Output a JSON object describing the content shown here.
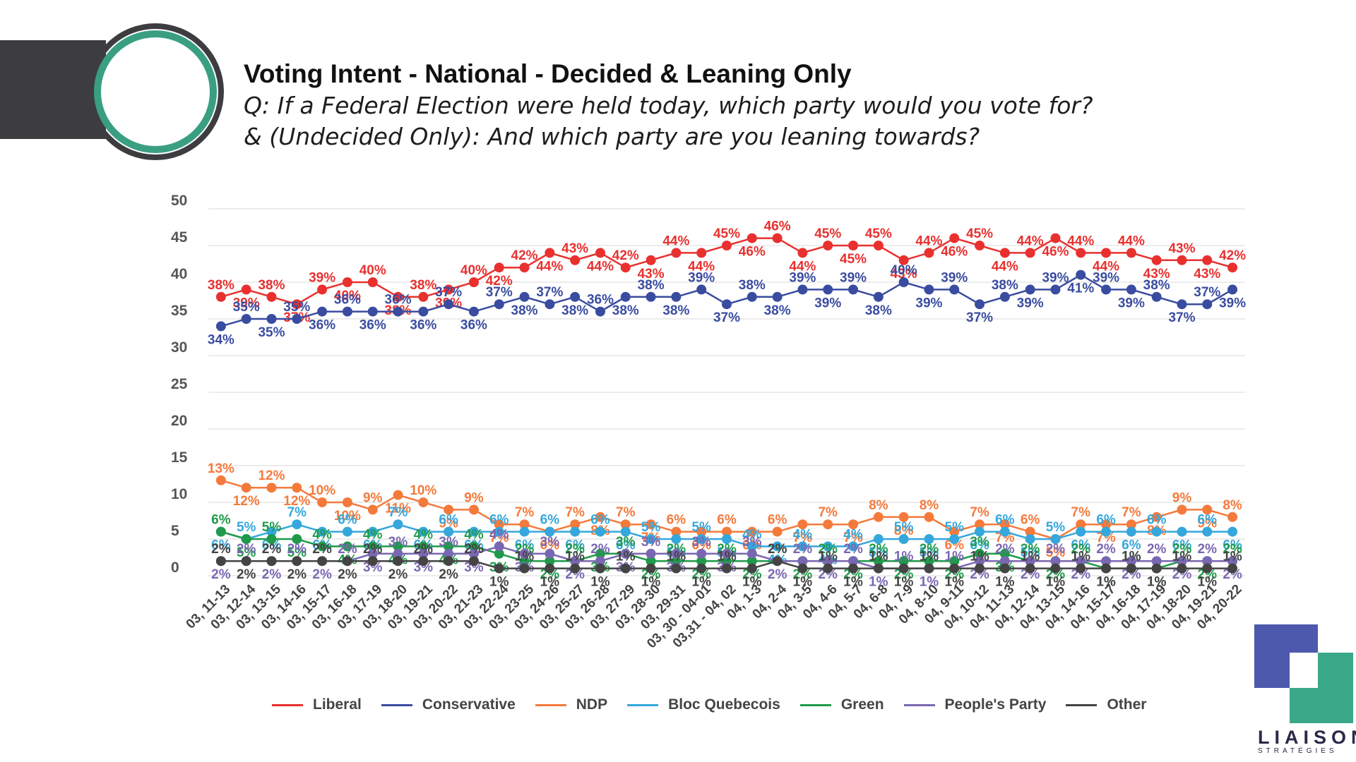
{
  "header": {
    "title": "Voting Intent - National - Decided & Leaning Only",
    "subtitle_line1": "Q: If a Federal Election were held today, which party would you vote for?",
    "subtitle_line2": "& (Undecided Only): And which party are you leaning towards?"
  },
  "logo": {
    "name": "LIAISON",
    "tagline": "STRATÉGIES"
  },
  "chart_data": {
    "type": "line",
    "title": "",
    "xlabel": "",
    "ylabel": "",
    "ylim": [
      0,
      50
    ],
    "yticks": [
      "0",
      "5",
      "10",
      "15",
      "20",
      "25",
      "30",
      "35",
      "40",
      "45",
      "50"
    ],
    "grid": true,
    "legend_position": "bottom",
    "categories": [
      "03, 11-13",
      "03, 12-14",
      "03, 13-15",
      "03, 14-16",
      "03, 15-17",
      "03, 16-18",
      "03, 17-19",
      "03, 18-20",
      "03, 19-21",
      "03, 20-22",
      "03, 21-23",
      "03, 22-24",
      "03, 23-25",
      "03, 24-26",
      "03, 25-27",
      "03, 26-28",
      "03, 27-29",
      "03, 28-30",
      "03, 29-31",
      "03, 30 - 04-01",
      "03,31 - 04, 02",
      "04, 1-3",
      "04, 2-4",
      "04, 3-5",
      "04, 4-6",
      "04, 5-7",
      "04, 6-8",
      "04, 7-9",
      "04, 8-10",
      "04, 9-11",
      "04, 10-12",
      "04, 11-13",
      "04, 12-14",
      "04, 13-15",
      "04, 14-16",
      "04, 15-17",
      "04, 16-18",
      "04, 17-19",
      "04, 18-20",
      "04, 19-21",
      "04, 20-22"
    ],
    "series": [
      {
        "name": "Liberal",
        "color": "#e8312f",
        "values": [
          38,
          39,
          38,
          37,
          39,
          40,
          40,
          38,
          38,
          39,
          40,
          42,
          42,
          44,
          43,
          44,
          42,
          43,
          44,
          44,
          45,
          46,
          46,
          44,
          45,
          45,
          45,
          43,
          44,
          46,
          45,
          44,
          44,
          46,
          44,
          44,
          44,
          43,
          43,
          43,
          42
        ]
      },
      {
        "name": "Conservative",
        "color": "#3a4ca0",
        "values": [
          34,
          35,
          35,
          35,
          36,
          36,
          36,
          36,
          36,
          37,
          36,
          37,
          38,
          37,
          38,
          36,
          38,
          38,
          38,
          39,
          37,
          38,
          38,
          39,
          39,
          39,
          38,
          40,
          39,
          39,
          37,
          38,
          39,
          39,
          41,
          39,
          39,
          38,
          37,
          37,
          39
        ]
      },
      {
        "name": "NDP",
        "color": "#f47a3c",
        "values": [
          13,
          12,
          12,
          12,
          10,
          10,
          9,
          11,
          10,
          9,
          9,
          7,
          7,
          6,
          7,
          8,
          7,
          7,
          6,
          6,
          6,
          6,
          6,
          7,
          7,
          7,
          8,
          8,
          8,
          6,
          7,
          7,
          6,
          5,
          7,
          7,
          7,
          8,
          9,
          9,
          8
        ]
      },
      {
        "name": "Bloc Quebecois",
        "color": "#35a7dc",
        "values": [
          6,
          5,
          6,
          7,
          6,
          6,
          6,
          7,
          6,
          6,
          6,
          6,
          6,
          6,
          6,
          6,
          6,
          5,
          5,
          5,
          5,
          4,
          4,
          4,
          4,
          4,
          5,
          5,
          5,
          5,
          6,
          6,
          5,
          5,
          6,
          6,
          6,
          6,
          6,
          6,
          6
        ]
      },
      {
        "name": "Green",
        "color": "#1f9a4a",
        "values": [
          6,
          5,
          5,
          5,
          4,
          4,
          4,
          4,
          4,
          4,
          4,
          3,
          2,
          2,
          2,
          3,
          3,
          2,
          2,
          2,
          2,
          2,
          2,
          2,
          2,
          2,
          2,
          2,
          2,
          2,
          3,
          3,
          2,
          2,
          2,
          1,
          1,
          1,
          2,
          2,
          2
        ]
      },
      {
        "name": "People's Party",
        "color": "#7a67b2",
        "values": [
          2,
          2,
          2,
          2,
          2,
          2,
          3,
          3,
          3,
          3,
          3,
          4,
          3,
          3,
          2,
          2,
          3,
          3,
          3,
          3,
          3,
          3,
          2,
          2,
          2,
          2,
          1,
          1,
          1,
          1,
          2,
          2,
          2,
          2,
          2,
          2,
          2,
          2,
          2,
          2,
          2
        ]
      },
      {
        "name": "Other",
        "color": "#444444",
        "values": [
          2,
          2,
          2,
          2,
          2,
          2,
          2,
          2,
          2,
          2,
          2,
          1,
          1,
          1,
          1,
          1,
          1,
          1,
          1,
          1,
          1,
          1,
          2,
          1,
          1,
          1,
          1,
          1,
          1,
          1,
          1,
          1,
          1,
          1,
          1,
          1,
          1,
          1,
          1,
          1,
          1
        ]
      }
    ]
  }
}
